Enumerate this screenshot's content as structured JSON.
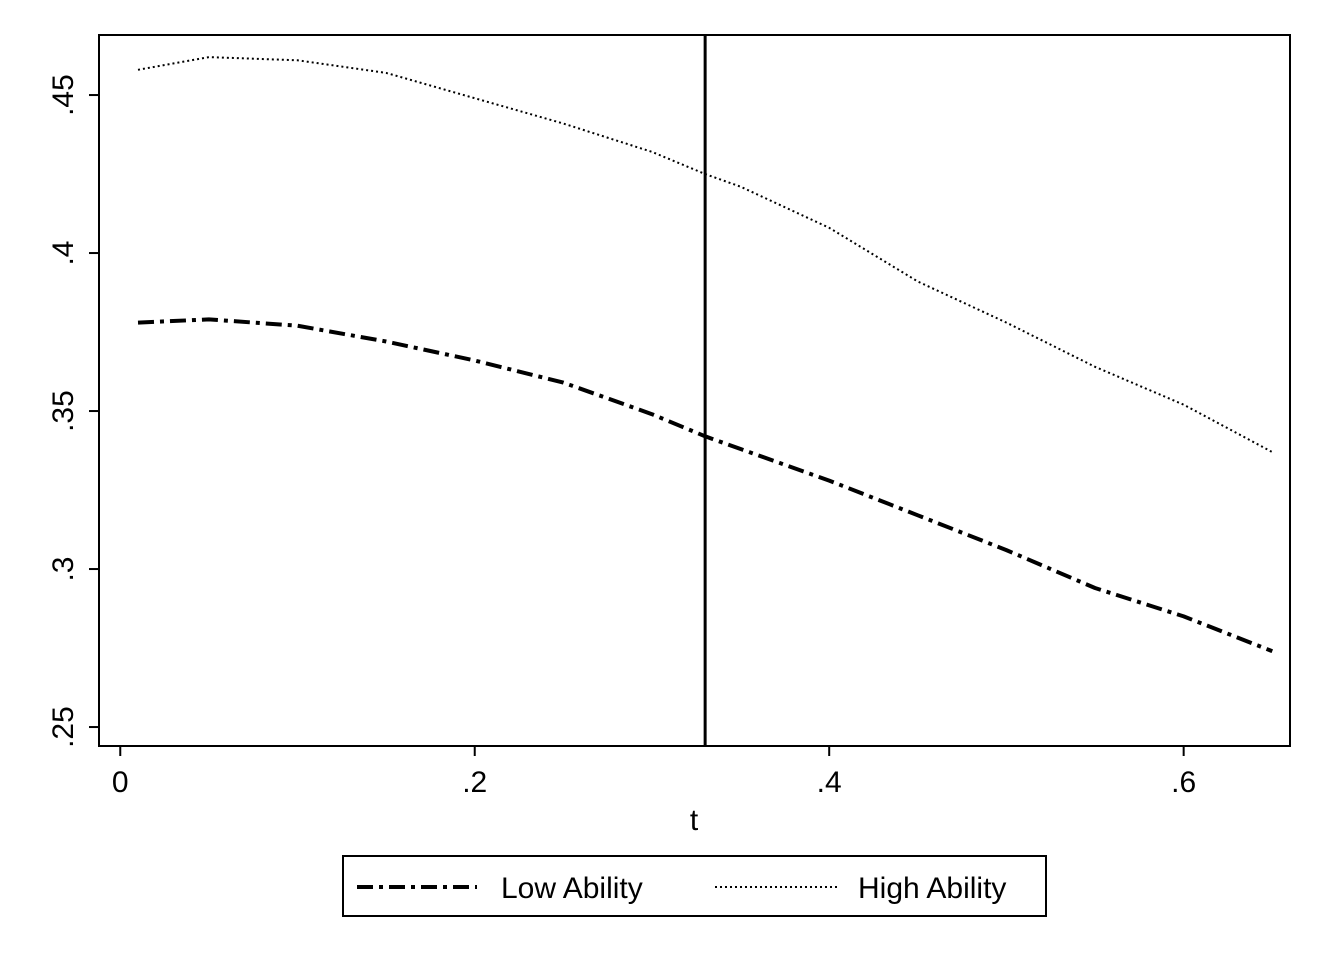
{
  "chart_data": {
    "type": "line",
    "title": "",
    "xlabel": "t",
    "ylabel": "",
    "xlim": [
      -0.012,
      0.66
    ],
    "ylim": [
      0.244,
      0.469
    ],
    "x_ticks": [
      0,
      0.2,
      0.4,
      0.6
    ],
    "x_tick_labels": [
      "0",
      ".2",
      ".4",
      ".6"
    ],
    "y_ticks": [
      0.25,
      0.3,
      0.35,
      0.4,
      0.45
    ],
    "y_tick_labels": [
      ".25",
      ".3",
      ".35",
      ".4",
      ".45"
    ],
    "grid": false,
    "legend_position": "bottom",
    "vertical_line_x": 0.33,
    "x": [
      0.01,
      0.05,
      0.1,
      0.15,
      0.2,
      0.25,
      0.3,
      0.33,
      0.35,
      0.4,
      0.45,
      0.5,
      0.55,
      0.6,
      0.65
    ],
    "series": [
      {
        "name": "Low Ability",
        "style": "dash-dot",
        "color": "#000000",
        "values": [
          0.378,
          0.379,
          0.377,
          0.372,
          0.366,
          0.359,
          0.349,
          0.342,
          0.338,
          0.328,
          0.317,
          0.306,
          0.294,
          0.285,
          0.274
        ]
      },
      {
        "name": "High Ability",
        "style": "dotted",
        "color": "#000000",
        "values": [
          0.458,
          0.462,
          0.461,
          0.457,
          0.449,
          0.441,
          0.432,
          0.425,
          0.421,
          0.408,
          0.391,
          0.378,
          0.364,
          0.352,
          0.337
        ]
      }
    ]
  }
}
